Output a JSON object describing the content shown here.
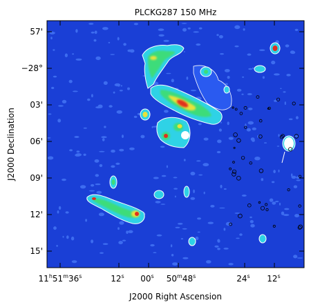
{
  "title": "PLCKG287 150 MHz",
  "xlabel": "J2000 Right Ascension",
  "ylabel": "J2000 Declination",
  "colors": {
    "background": "#1a3fd6",
    "noise_light": "#3d6cf0",
    "cyan": "#2fd2e6",
    "green": "#3ddc7a",
    "yellow": "#e8e23a",
    "red": "#e0301e",
    "contour": "#ffffff",
    "frame": "#000000"
  },
  "x_ticks": [
    {
      "h": "11",
      "hu": "h",
      "m": "51",
      "mu": "m",
      "s": "36",
      "su": "s"
    },
    {
      "s": "12",
      "su": "s"
    },
    {
      "s": "00",
      "su": "s"
    },
    {
      "m": "50",
      "mu": "m",
      "s": "48",
      "su": "s"
    },
    {
      "s": "24",
      "su": "s"
    },
    {
      "s": "12",
      "su": "s"
    }
  ],
  "y_ticks": [
    "57'",
    "−28°",
    "03'",
    "06'",
    "09'",
    "12'",
    "15'"
  ]
}
